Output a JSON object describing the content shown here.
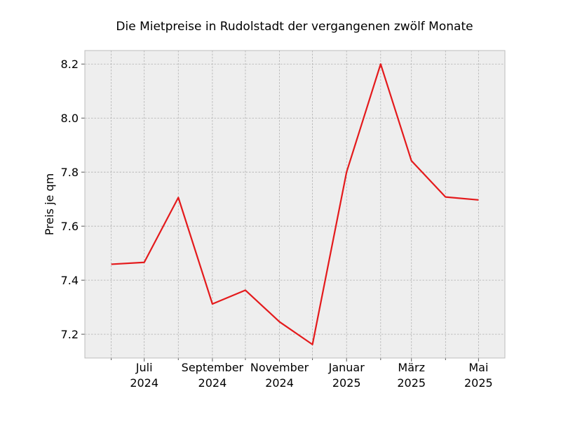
{
  "chart_data": {
    "type": "line",
    "title": "Die Mietpreise in Rudolstadt der vergangenen zwölf Monate",
    "xlabel": "",
    "ylabel": "Preis je qm",
    "x": [
      "2024-06",
      "2024-07",
      "2024-08",
      "2024-09",
      "2024-10",
      "2024-11",
      "2024-12",
      "2025-01",
      "2025-02",
      "2025-03",
      "2025-04",
      "2025-05"
    ],
    "series": [
      {
        "values": [
          7.459,
          7.466,
          7.706,
          7.312,
          7.363,
          7.246,
          7.162,
          7.8,
          8.2,
          7.842,
          7.708,
          7.697
        ],
        "color": "#e41a1c"
      }
    ],
    "x_tick_labels": [
      {
        "x": "2024-07",
        "line1": "Juli",
        "line2": "2024"
      },
      {
        "x": "2024-09",
        "line1": "September",
        "line2": "2024"
      },
      {
        "x": "2024-11",
        "line1": "November",
        "line2": "2024"
      },
      {
        "x": "2025-01",
        "line1": "Januar",
        "line2": "2025"
      },
      {
        "x": "2025-03",
        "line1": "März",
        "line2": "2025"
      },
      {
        "x": "2025-05",
        "line1": "Mai",
        "line2": "2025"
      }
    ],
    "minor_x_ticks": [
      "2024-06",
      "2024-08",
      "2024-10",
      "2024-12",
      "2025-02",
      "2025-04"
    ],
    "xlim": [
      "2024-05-08",
      "2025-05-25"
    ],
    "ylim": [
      7.112,
      8.25
    ],
    "yticks": [
      7.2,
      7.4,
      7.6,
      7.8,
      8.0,
      8.2
    ],
    "ytick_labels": [
      "7.2",
      "7.4",
      "7.6",
      "7.8",
      "8.0",
      "8.2"
    ],
    "grid": true,
    "colors": {
      "plot_background": "#eeeeee",
      "grid": "#b0b0b0",
      "frame": "#bcbcbc",
      "line": "#e41a1c"
    }
  }
}
